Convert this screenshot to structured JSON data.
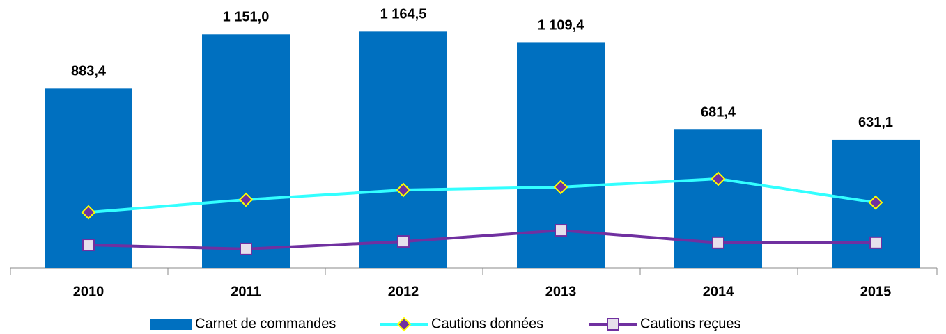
{
  "chart_data": {
    "type": "bar_line",
    "categories": [
      "2010",
      "2011",
      "2012",
      "2013",
      "2014",
      "2015"
    ],
    "series": [
      {
        "name": "Carnet de commandes",
        "type": "bar",
        "color": "#0070c0",
        "values": [
          883.4,
          1151.0,
          1164.5,
          1109.4,
          681.4,
          631.1
        ],
        "value_labels": [
          "883,4",
          "1 151,0",
          "1 164,5",
          "1 109,4",
          "681,4",
          "631,1"
        ]
      },
      {
        "name": "Cautions données",
        "type": "line",
        "color": "#33ffff",
        "marker": "diamond",
        "marker_color": "#7030a0",
        "values": [
          274,
          336,
          384,
          398,
          439,
          322
        ]
      },
      {
        "name": "Cautions reçues",
        "type": "line",
        "color": "#7030a0",
        "marker": "square",
        "marker_color": "#e6e0ec",
        "values": [
          113,
          93,
          130,
          185,
          124,
          124
        ]
      }
    ],
    "ylim": [
      0,
      1200
    ],
    "legend": "bottom"
  }
}
